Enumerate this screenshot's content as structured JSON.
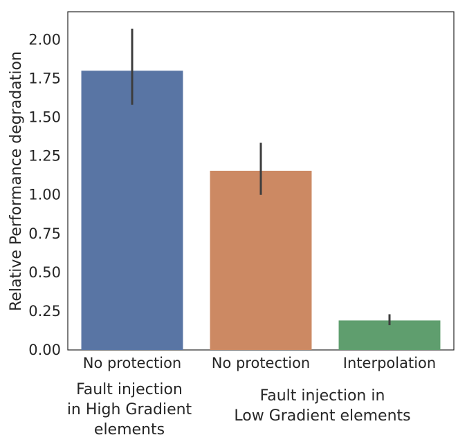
{
  "chart_data": {
    "type": "bar",
    "categories": [
      "No protection",
      "No protection",
      "Interpolation"
    ],
    "values": [
      1.8,
      1.155,
      0.19
    ],
    "error_bars": [
      [
        1.58,
        2.07
      ],
      [
        1.0,
        1.335
      ],
      [
        0.16,
        0.23
      ]
    ],
    "colors": [
      "#5975a4",
      "#cc8963",
      "#5f9e6e"
    ],
    "title": "",
    "xlabel": "",
    "ylabel": "Relative Performance degradation",
    "ylim": [
      0,
      2.18
    ],
    "yticks": [
      "0.00",
      "0.25",
      "0.50",
      "0.75",
      "1.00",
      "1.25",
      "1.50",
      "1.75",
      "2.00"
    ],
    "ytick_values": [
      0,
      0.25,
      0.5,
      0.75,
      1.0,
      1.25,
      1.5,
      1.75,
      2.0
    ],
    "groups": [
      {
        "label_lines": [
          "Fault injection",
          "in High Gradient",
          "elements"
        ],
        "categories": [
          0
        ]
      },
      {
        "label_lines": [
          "Fault injection in",
          "Low Gradient elements"
        ],
        "categories": [
          1,
          2
        ]
      }
    ],
    "grid": false,
    "legend": "none"
  }
}
